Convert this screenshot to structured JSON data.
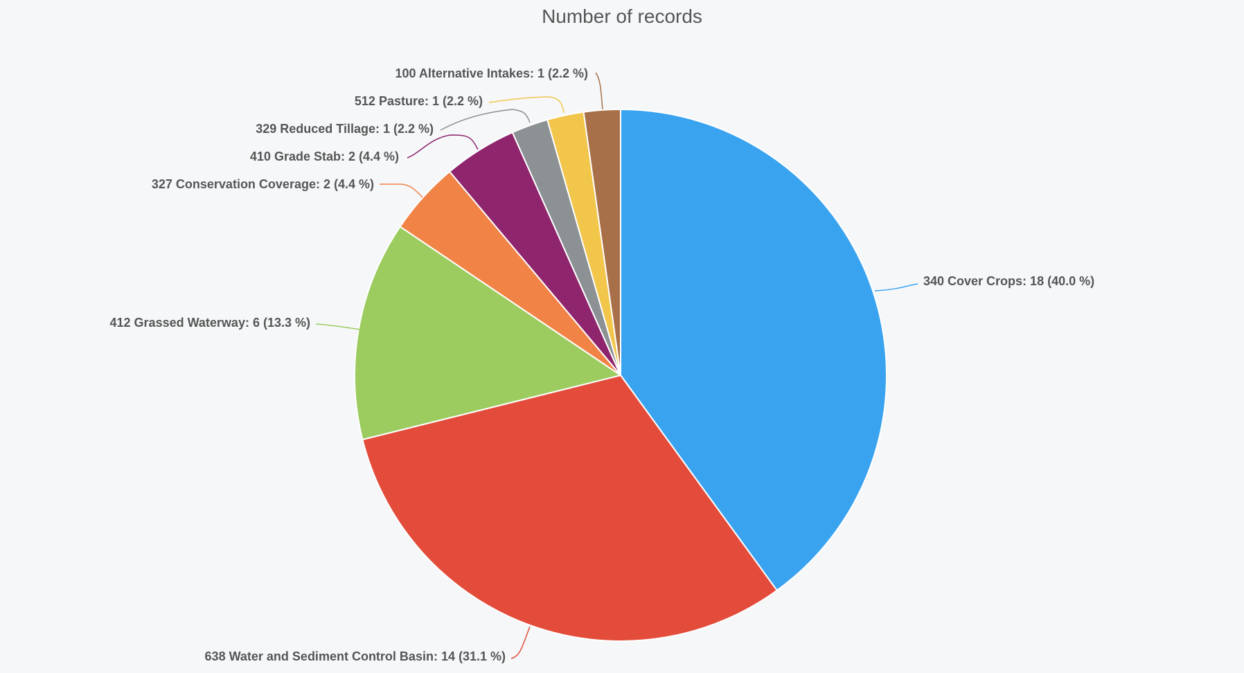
{
  "chart_data": {
    "type": "pie",
    "title": "Number of records",
    "slices": [
      {
        "label": "340 Cover Crops: 18 (40.0 %)",
        "category": "340 Cover Crops",
        "value": 18,
        "percent": 40.0,
        "color": "#3aa3f0"
      },
      {
        "label": "638 Water and Sediment Control Basin: 14 (31.1 %)",
        "category": "638 Water and Sediment Control Basin",
        "value": 14,
        "percent": 31.1,
        "color": "#e34c3a"
      },
      {
        "label": "412 Grassed Waterway: 6 (13.3 %)",
        "category": "412 Grassed Waterway",
        "value": 6,
        "percent": 13.3,
        "color": "#9ccb5f"
      },
      {
        "label": "327 Conservation Coverage: 2 (4.4 %)",
        "category": "327 Conservation Coverage",
        "value": 2,
        "percent": 4.4,
        "color": "#f18346"
      },
      {
        "label": "410 Grade Stab: 2 (4.4 %)",
        "category": "410 Grade Stab",
        "value": 2,
        "percent": 4.4,
        "color": "#8e256d"
      },
      {
        "label": "329 Reduced Tillage: 1 (2.2 %)",
        "category": "329 Reduced Tillage",
        "value": 1,
        "percent": 2.2,
        "color": "#8c9194"
      },
      {
        "label": "512 Pasture: 1 (2.2 %)",
        "category": "512 Pasture",
        "value": 1,
        "percent": 2.2,
        "color": "#f2c54b"
      },
      {
        "label": "100 Alternative Intakes: 1 (2.2 %)",
        "category": "100 Alternative Intakes",
        "value": 1,
        "percent": 2.2,
        "color": "#a87048"
      }
    ],
    "legend": "none",
    "data_labels": "outside-with-connectors"
  }
}
